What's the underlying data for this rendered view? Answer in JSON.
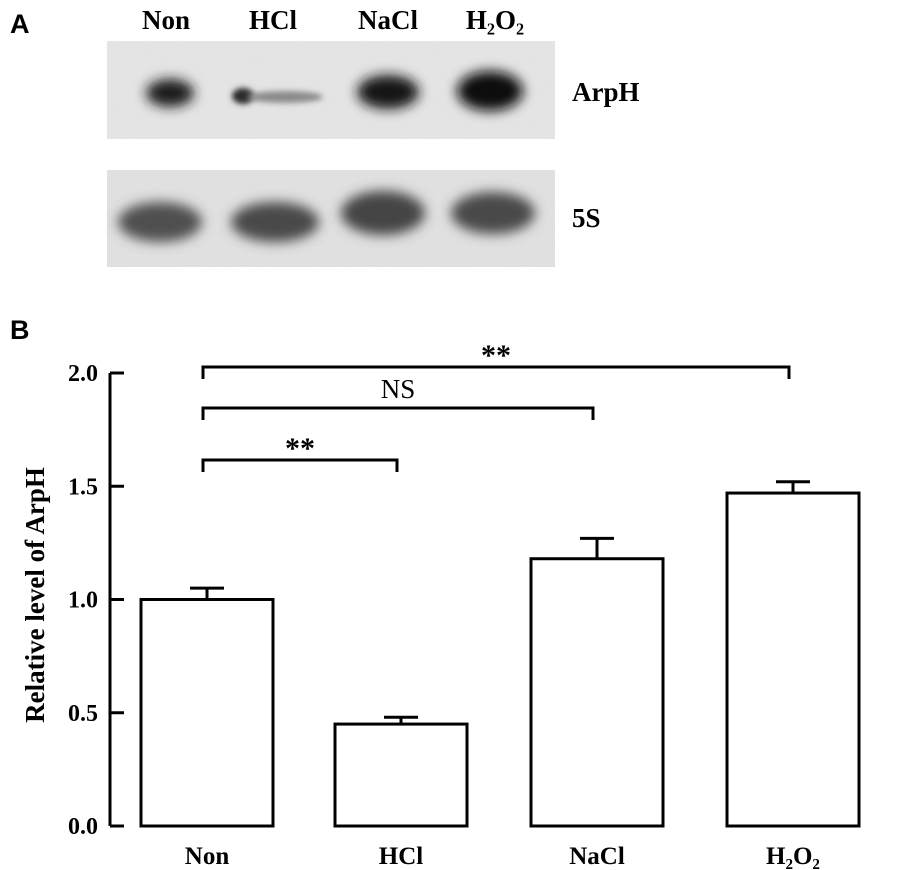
{
  "panels": {
    "a_label": "A",
    "b_label": "B"
  },
  "blot": {
    "lanes": [
      "Non",
      "HCl",
      "NaCl",
      "H₂O₂"
    ],
    "rows": [
      "ArpH",
      "5S"
    ]
  },
  "chart_data": {
    "type": "bar",
    "categories": [
      "Non",
      "HCl",
      "NaCl",
      "H₂O₂"
    ],
    "values": [
      1.0,
      0.45,
      1.18,
      1.47
    ],
    "errors": [
      0.05,
      0.03,
      0.09,
      0.05
    ],
    "title": "",
    "xlabel": "",
    "ylabel": "Relative level of ArpH",
    "ylim": [
      0,
      2.0
    ],
    "yticks": [
      "0.0",
      "0.5",
      "1.0",
      "1.5",
      "2.0"
    ],
    "grid": false,
    "significance": [
      {
        "from": 0,
        "to": 1,
        "label": "**"
      },
      {
        "from": 0,
        "to": 2,
        "label": "NS"
      },
      {
        "from": 0,
        "to": 3,
        "label": "**"
      }
    ]
  }
}
